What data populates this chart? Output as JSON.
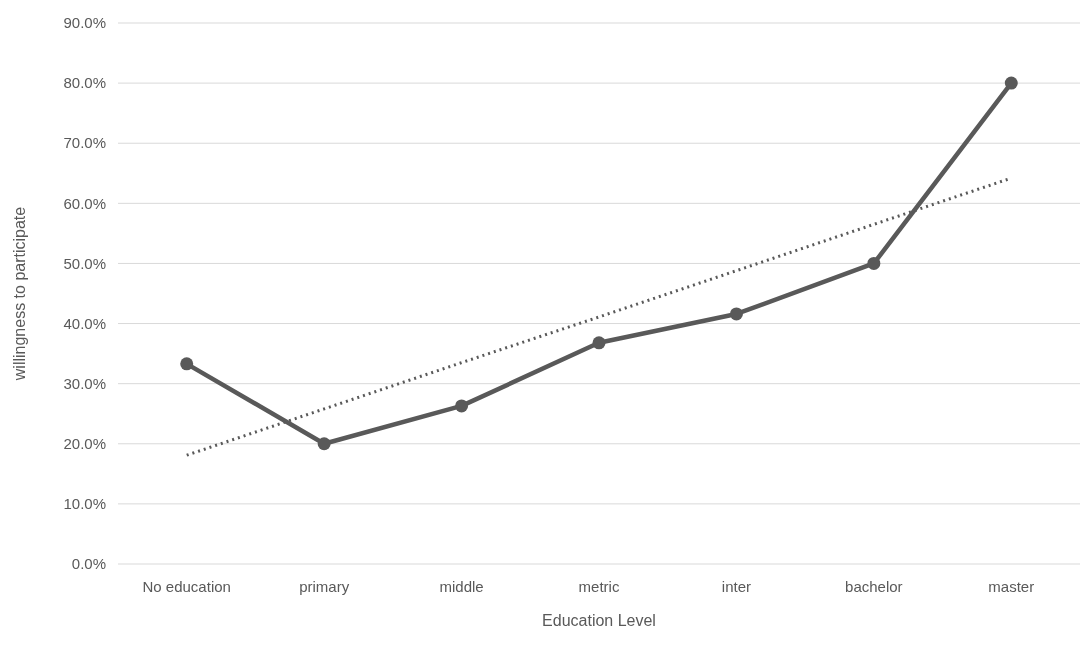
{
  "chart_data": {
    "type": "line",
    "xlabel": "Education Level",
    "ylabel": "willingness to participate",
    "categories": [
      "No education",
      "primary",
      "middle",
      "metric",
      "inter",
      "bachelor",
      "master"
    ],
    "series": [
      {
        "color": "#595959",
        "values": [
          33.3,
          20.0,
          26.3,
          36.8,
          41.6,
          50.0,
          80.0
        ],
        "marker": "circle",
        "line_style": "solid"
      },
      {
        "type": "line",
        "color": "#595959",
        "values": [
          18.1,
          25.8,
          33.5,
          41.1,
          48.8,
          56.5,
          64.2
        ],
        "marker": "none",
        "line_style": "dotted"
      }
    ],
    "ylim": [
      0,
      90
    ],
    "yticks": [
      {
        "value": 0,
        "label": "0.0%"
      },
      {
        "value": 10,
        "label": "10.0%"
      },
      {
        "value": 20,
        "label": "20.0%"
      },
      {
        "value": 30,
        "label": "30.0%"
      },
      {
        "value": 40,
        "label": "40.0%"
      },
      {
        "value": 50,
        "label": "50.0%"
      },
      {
        "value": 60,
        "label": "60.0%"
      },
      {
        "value": 70,
        "label": "70.0%"
      },
      {
        "value": 80,
        "label": "80.0%"
      },
      {
        "value": 90,
        "label": "90.0%"
      }
    ],
    "grid": "y"
  }
}
